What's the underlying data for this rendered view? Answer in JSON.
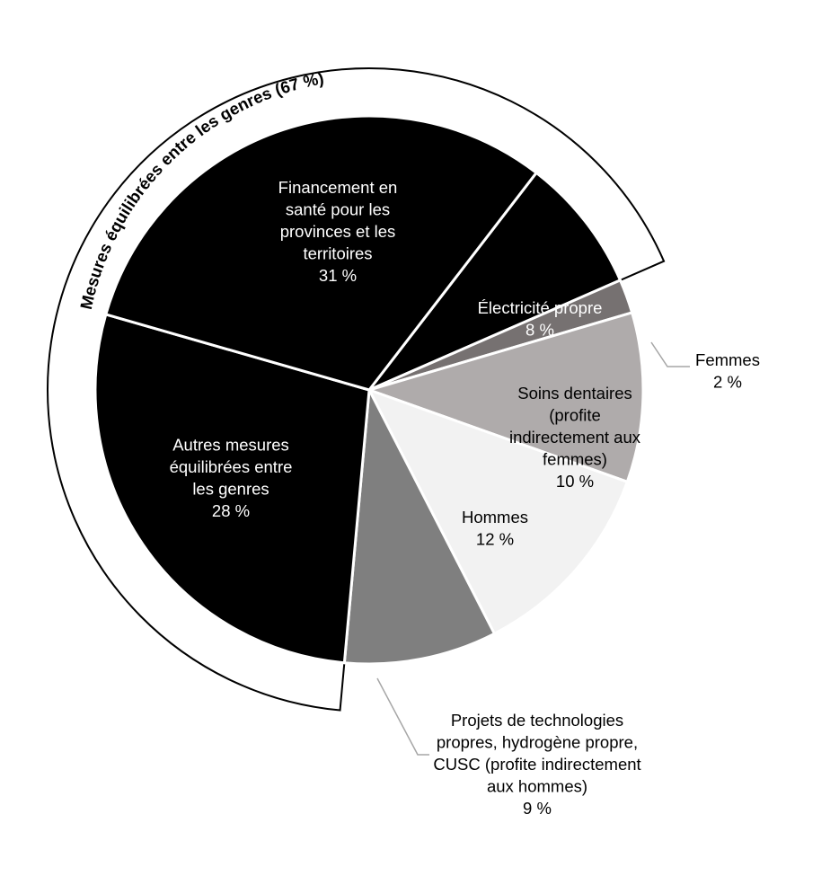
{
  "chart_data": {
    "type": "pie",
    "title": "",
    "group": {
      "label": "Mesures équilibrées entre les genres (67 %)",
      "value": 67
    },
    "slices": [
      {
        "key": "elec",
        "label": [
          "Électricité propre",
          "8 %"
        ],
        "value": 8,
        "color": "#000000",
        "text_color": "#ffffff"
      },
      {
        "key": "femmes",
        "label": [
          "Femmes",
          "2 %"
        ],
        "value": 2,
        "color": "#767171",
        "text_color": "#000000"
      },
      {
        "key": "dentaires",
        "label": [
          "Soins dentaires",
          "(profite",
          "indirectement aux",
          "femmes)",
          "10 %"
        ],
        "value": 10,
        "color": "#afabab",
        "text_color": "#000000"
      },
      {
        "key": "hommes",
        "label": [
          "Hommes",
          "12 %"
        ],
        "value": 12,
        "color": "#f2f2f2",
        "text_color": "#000000"
      },
      {
        "key": "projets",
        "label": [
          "Projets de technologies",
          "propres, hydrogène propre,",
          "CUSC (profite indirectement",
          "aux hommes)",
          "9 %"
        ],
        "value": 9,
        "color": "#7f7f7f",
        "text_color": "#000000"
      },
      {
        "key": "autres",
        "label": [
          "Autres mesures",
          "équilibrées entre",
          "les genres",
          "28 %"
        ],
        "value": 28,
        "color": "#000000",
        "text_color": "#ffffff"
      },
      {
        "key": "sante",
        "label": [
          "Financement en",
          "santé pour les",
          "provinces et les",
          "territoires",
          "31 %"
        ],
        "value": 31,
        "color": "#000000",
        "text_color": "#ffffff"
      }
    ]
  }
}
